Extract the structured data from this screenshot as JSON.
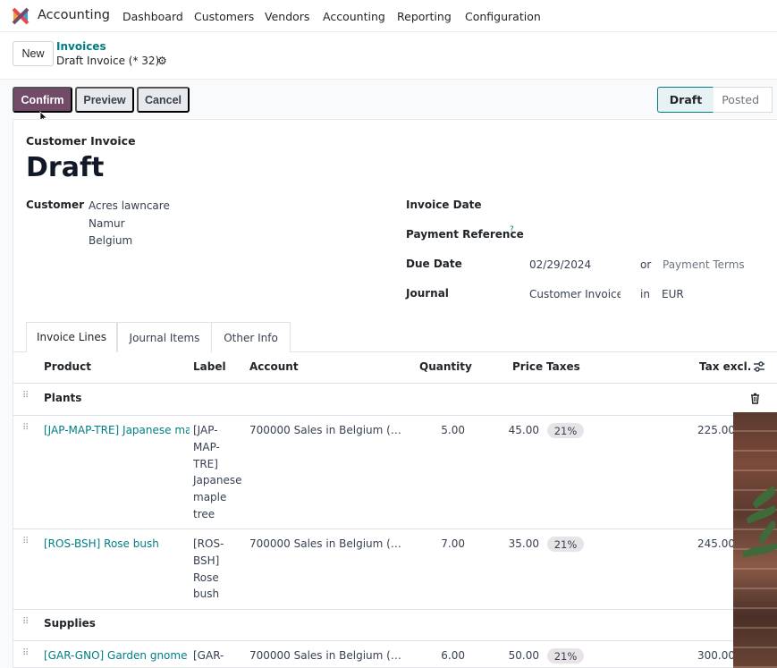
{
  "nav": {
    "app_name": "Accounting",
    "menu": [
      "Dashboard",
      "Customers",
      "Vendors",
      "Accounting",
      "Reporting",
      "Configuration"
    ]
  },
  "control": {
    "new_label": "New",
    "breadcrumb_parent": "Invoices",
    "breadcrumb_current": "Draft Invoice (* 32)"
  },
  "actions": {
    "confirm": "Confirm",
    "preview": "Preview",
    "cancel": "Cancel"
  },
  "status": {
    "draft": "Draft",
    "posted": "Posted"
  },
  "form": {
    "doc_type": "Customer Invoice",
    "title": "Draft",
    "customer_label": "Customer",
    "customer_name": "Acres lawncare",
    "customer_city": "Namur",
    "customer_country": "Belgium",
    "invoice_date_label": "Invoice Date",
    "payment_ref_label": "Payment Reference",
    "payment_ref_help": "?",
    "due_date_label": "Due Date",
    "due_date_value": "02/29/2024",
    "or_text": "or",
    "payment_terms_placeholder": "Payment Terms",
    "journal_label": "Journal",
    "journal_value": "Customer Invoices",
    "in_text": "in",
    "currency": "EUR"
  },
  "tabs": [
    "Invoice Lines",
    "Journal Items",
    "Other Info"
  ],
  "table": {
    "headers": {
      "product": "Product",
      "label": "Label",
      "account": "Account",
      "quantity": "Quantity",
      "price": "Price",
      "taxes": "Taxes",
      "tax_excl": "Tax excl."
    },
    "section_plants": "Plants",
    "section_supplies": "Supplies",
    "rows": [
      {
        "product": "[JAP-MAP-TRE] Japanese maple tree",
        "label": "[JAP-MAP-TRE] Japanese maple tree",
        "account": "700000 Sales in Belgium (…",
        "quantity": "5.00",
        "price": "45.00",
        "tax": "21%",
        "subtotal": "225.00"
      },
      {
        "product": "[ROS-BSH] Rose bush",
        "label": "[ROS-BSH] Rose bush",
        "account": "700000 Sales in Belgium (…",
        "quantity": "7.00",
        "price": "35.00",
        "tax": "21%",
        "subtotal": "245.00"
      },
      {
        "product": "[GAR-GNO] Garden gnome",
        "label": "[GAR-",
        "account": "700000 Sales in Belgium (…",
        "quantity": "6.00",
        "price": "50.00",
        "tax": "21%",
        "subtotal": "300.00"
      }
    ]
  },
  "colors": {
    "brand": "#714b67",
    "link": "#017e84"
  }
}
